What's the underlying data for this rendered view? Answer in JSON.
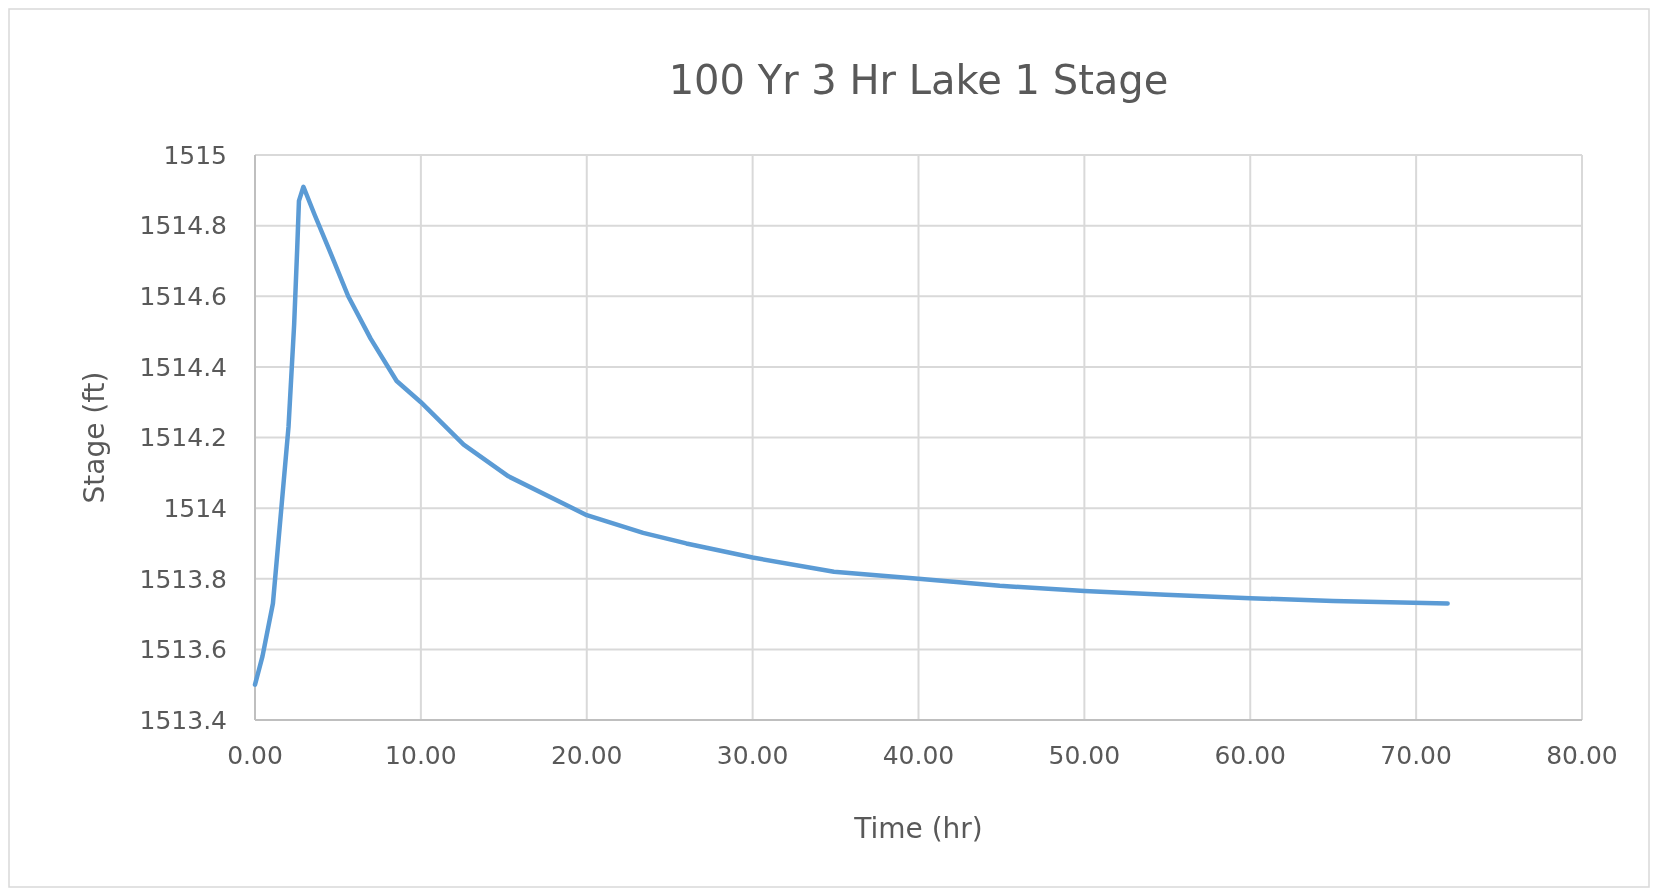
{
  "chart_data": {
    "type": "line",
    "title": "100 Yr 3 Hr Lake 1 Stage",
    "xlabel": "Time (hr)",
    "ylabel": "Stage (ft)",
    "x": [
      0,
      0.45,
      1.08,
      1.57,
      2.02,
      2.36,
      2.54,
      2.65,
      2.92,
      3.6,
      4.49,
      5.62,
      6.97,
      8.54,
      10.0,
      12.58,
      15.28,
      20.0,
      23.4,
      26,
      30,
      34.9,
      40,
      44.9,
      50,
      54.9,
      60,
      65,
      71.9
    ],
    "series": [
      {
        "color": "#5b9bd5",
        "values": [
          1513.5,
          1513.58,
          1513.73,
          1513.99,
          1514.23,
          1514.52,
          1514.73,
          1514.87,
          1514.91,
          1514.83,
          1514.73,
          1514.6,
          1514.48,
          1514.36,
          1514.3,
          1514.18,
          1514.09,
          1513.98,
          1513.93,
          1513.9,
          1513.86,
          1513.82,
          1513.8,
          1513.78,
          1513.765,
          1513.755,
          1513.745,
          1513.737,
          1513.73
        ]
      }
    ],
    "xlim": [
      0,
      80
    ],
    "xticks": [
      {
        "value": 0,
        "label": "0.00"
      },
      {
        "value": 10,
        "label": "10.00"
      },
      {
        "value": 20,
        "label": "20.00"
      },
      {
        "value": 30,
        "label": "30.00"
      },
      {
        "value": 40,
        "label": "40.00"
      },
      {
        "value": 50,
        "label": "50.00"
      },
      {
        "value": 60,
        "label": "60.00"
      },
      {
        "value": 70,
        "label": "70.00"
      },
      {
        "value": 80,
        "label": "80.00"
      }
    ],
    "ylim": [
      1513.4,
      1515
    ],
    "yticks": [
      1513.4,
      1513.6,
      1513.8,
      1514,
      1514.2,
      1514.4,
      1514.6,
      1514.8,
      1515
    ],
    "grid": true,
    "marker": "none",
    "line_style": "solid"
  }
}
